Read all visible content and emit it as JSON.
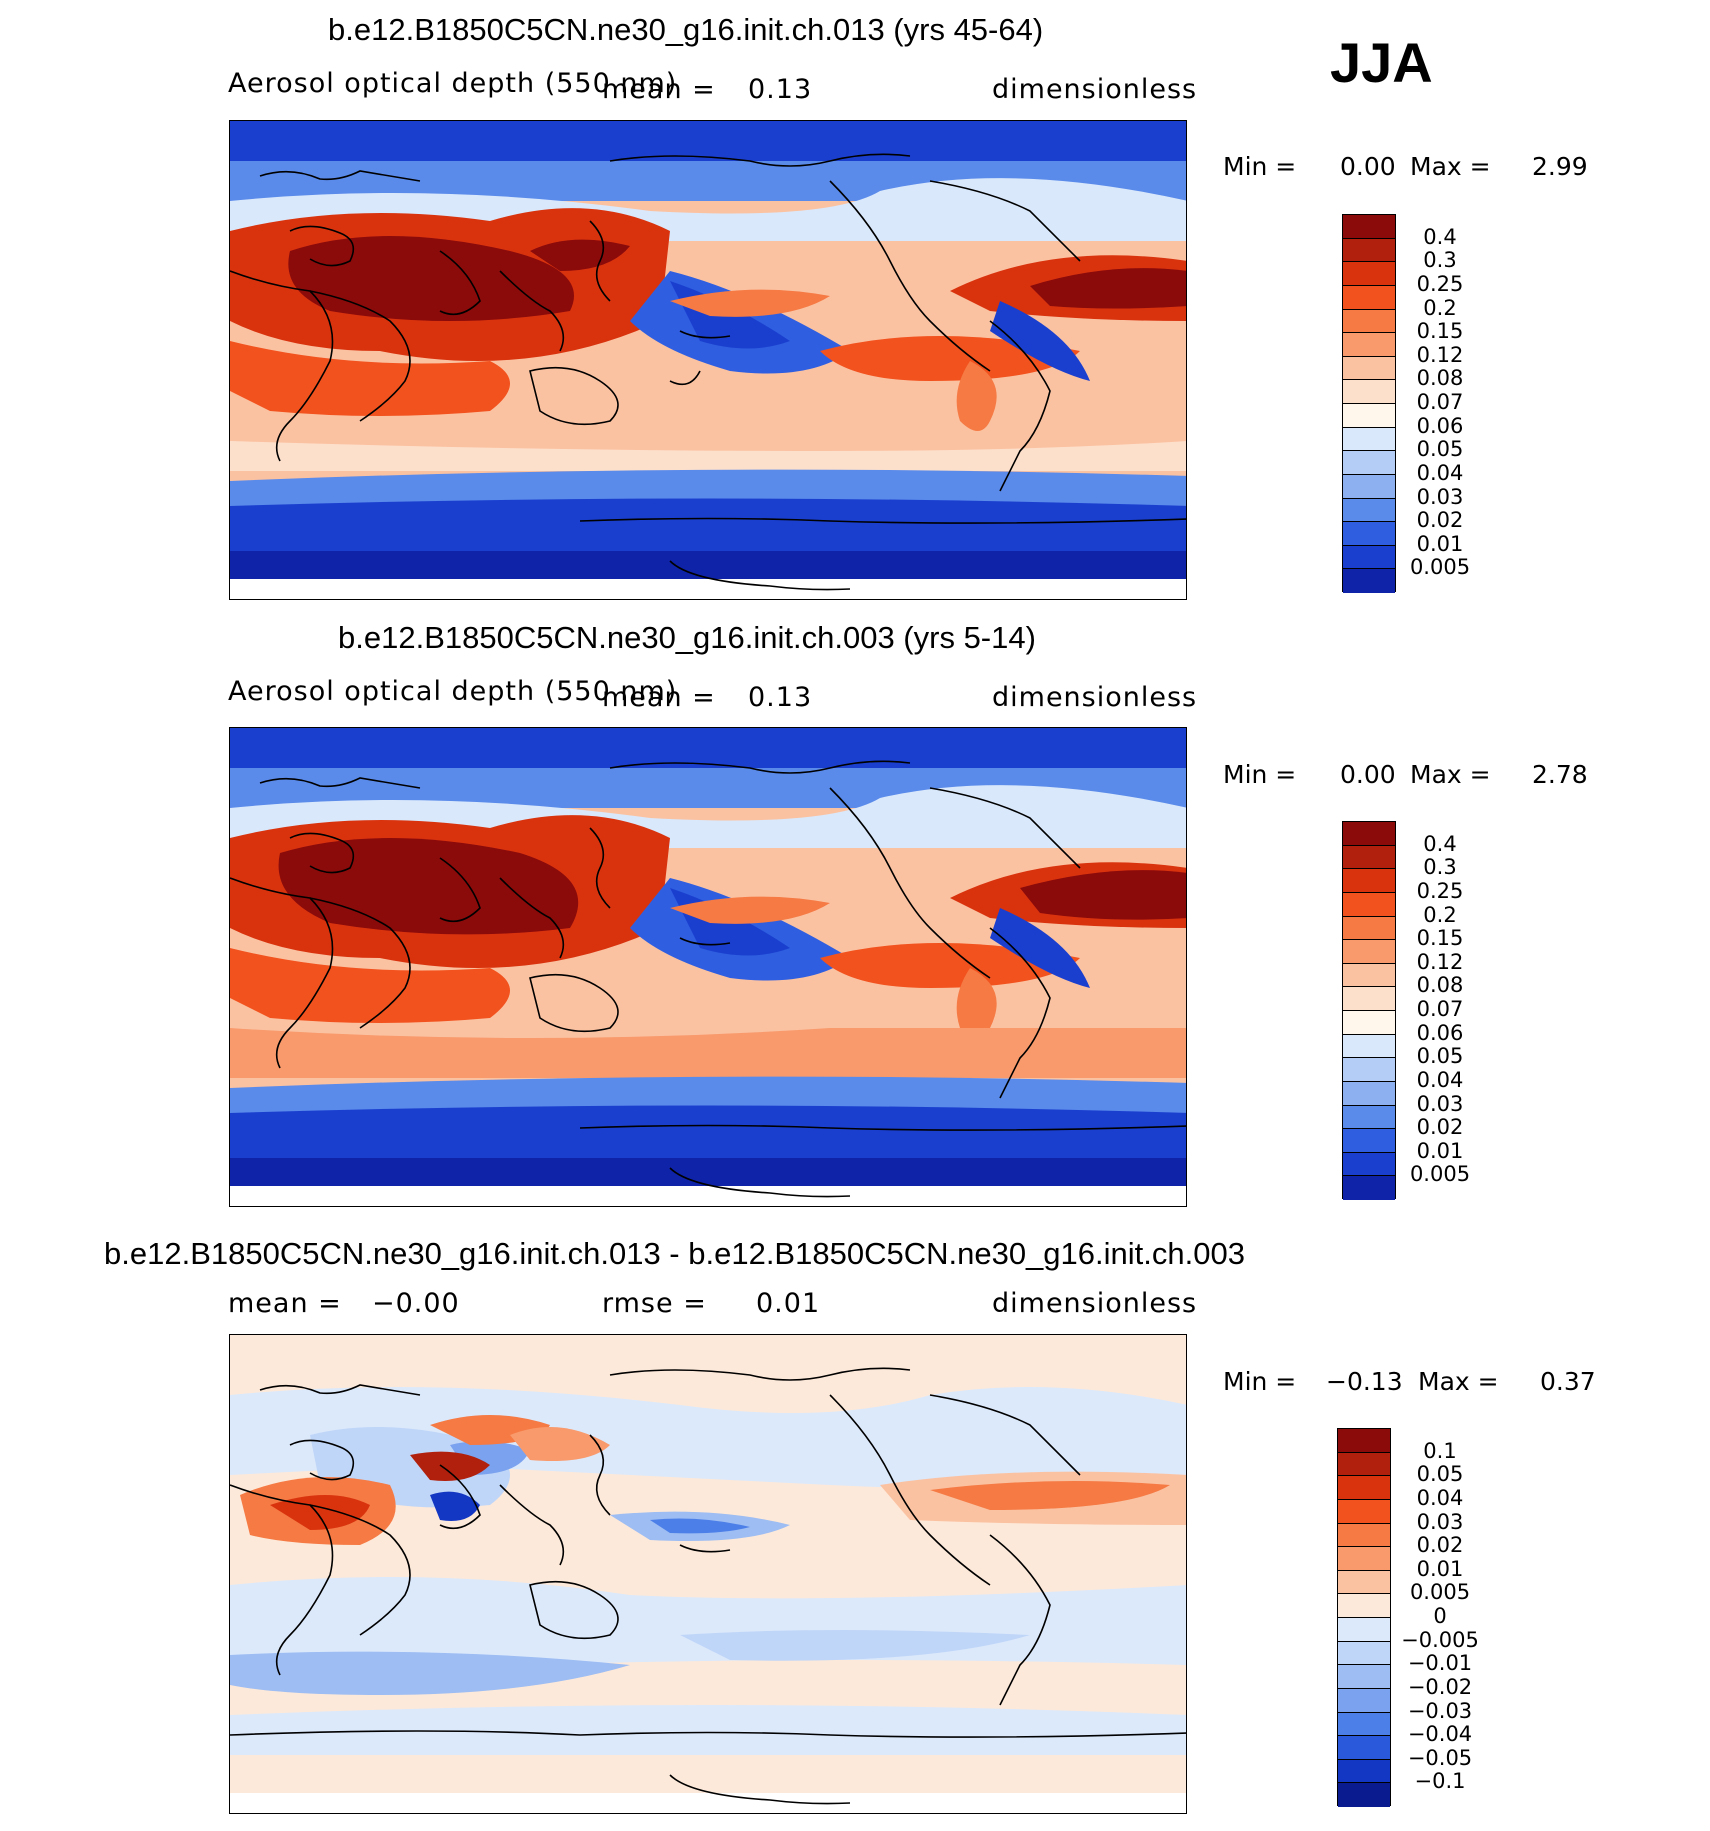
{
  "season": "JJA",
  "panels": [
    {
      "title": "b.e12.B1850C5CN.ne30_g16.init.ch.013 (yrs 45-64)",
      "left_label": "Aerosol optical depth (550 nm)",
      "mean_label": "mean =",
      "mean_value": "0.13",
      "units": "dimensionless",
      "min_label": "Min =",
      "min_value": "0.00",
      "max_label": "Max =",
      "max_value": "2.99"
    },
    {
      "title": "b.e12.B1850C5CN.ne30_g16.init.ch.003 (yrs 5-14)",
      "left_label": "Aerosol optical depth (550 nm)",
      "mean_label": "mean =",
      "mean_value": "0.13",
      "units": "dimensionless",
      "min_label": "Min =",
      "min_value": "0.00",
      "max_label": "Max =",
      "max_value": "2.78"
    },
    {
      "title": "b.e12.B1850C5CN.ne30_g16.init.ch.013 - b.e12.B1850C5CN.ne30_g16.init.ch.003",
      "mean_label": "mean =",
      "mean_value": "−0.00",
      "rmse_label": "rmse =",
      "rmse_value": "0.01",
      "units": "dimensionless",
      "min_label": "Min =",
      "min_value": "−0.13",
      "max_label": "Max =",
      "max_value": "0.37"
    }
  ],
  "colorbars": {
    "aod": {
      "labels": [
        "0.4",
        "0.3",
        "0.25",
        "0.2",
        "0.15",
        "0.12",
        "0.08",
        "0.07",
        "0.06",
        "0.05",
        "0.04",
        "0.03",
        "0.02",
        "0.01",
        "0.005"
      ],
      "colors": [
        "#8b0a0a",
        "#b0200c",
        "#d9330e",
        "#f2521e",
        "#f57a44",
        "#f89a6c",
        "#fbc2a2",
        "#fde0cc",
        "#fff6ec",
        "#d9e8fb",
        "#b4cdf6",
        "#8db0f0",
        "#5a8aea",
        "#2f5fe0",
        "#1a3fcf",
        "#0e23a8"
      ]
    },
    "diff": {
      "labels": [
        "0.1",
        "0.05",
        "0.04",
        "0.03",
        "0.02",
        "0.01",
        "0.005",
        "0",
        "−0.005",
        "−0.01",
        "−0.02",
        "−0.03",
        "−0.04",
        "−0.05",
        "−0.1"
      ],
      "colors": [
        "#8b0a0a",
        "#b0200c",
        "#d9330e",
        "#f2521e",
        "#f57a44",
        "#f89a6c",
        "#fbc2a2",
        "#fde9d9",
        "#dce9fb",
        "#c0d6f8",
        "#9dbdf3",
        "#7aa2ee",
        "#4d7fe8",
        "#2b59dc",
        "#1337c2",
        "#0a1a8f"
      ]
    }
  },
  "chart_data": [
    {
      "type": "heatmap",
      "title": "b.e12.B1850C5CN.ne30_g16.init.ch.013 (yrs 45-64)",
      "variable": "Aerosol optical depth (550 nm)",
      "season": "JJA",
      "units": "dimensionless",
      "mean": 0.13,
      "min": 0.0,
      "max": 2.99,
      "contour_levels": [
        0.005,
        0.01,
        0.02,
        0.03,
        0.04,
        0.05,
        0.06,
        0.07,
        0.08,
        0.12,
        0.15,
        0.2,
        0.25,
        0.3,
        0.4
      ]
    },
    {
      "type": "heatmap",
      "title": "b.e12.B1850C5CN.ne30_g16.init.ch.003 (yrs 5-14)",
      "variable": "Aerosol optical depth (550 nm)",
      "season": "JJA",
      "units": "dimensionless",
      "mean": 0.13,
      "min": 0.0,
      "max": 2.78,
      "contour_levels": [
        0.005,
        0.01,
        0.02,
        0.03,
        0.04,
        0.05,
        0.06,
        0.07,
        0.08,
        0.12,
        0.15,
        0.2,
        0.25,
        0.3,
        0.4
      ]
    },
    {
      "type": "heatmap",
      "title": "b.e12.B1850C5CN.ne30_g16.init.ch.013 - b.e12.B1850C5CN.ne30_g16.init.ch.003",
      "season": "JJA",
      "units": "dimensionless",
      "mean": -0.0,
      "rmse": 0.01,
      "min": -0.13,
      "max": 0.37,
      "contour_levels": [
        -0.1,
        -0.05,
        -0.04,
        -0.03,
        -0.02,
        -0.01,
        -0.005,
        0,
        0.005,
        0.01,
        0.02,
        0.03,
        0.04,
        0.05,
        0.1
      ]
    }
  ]
}
